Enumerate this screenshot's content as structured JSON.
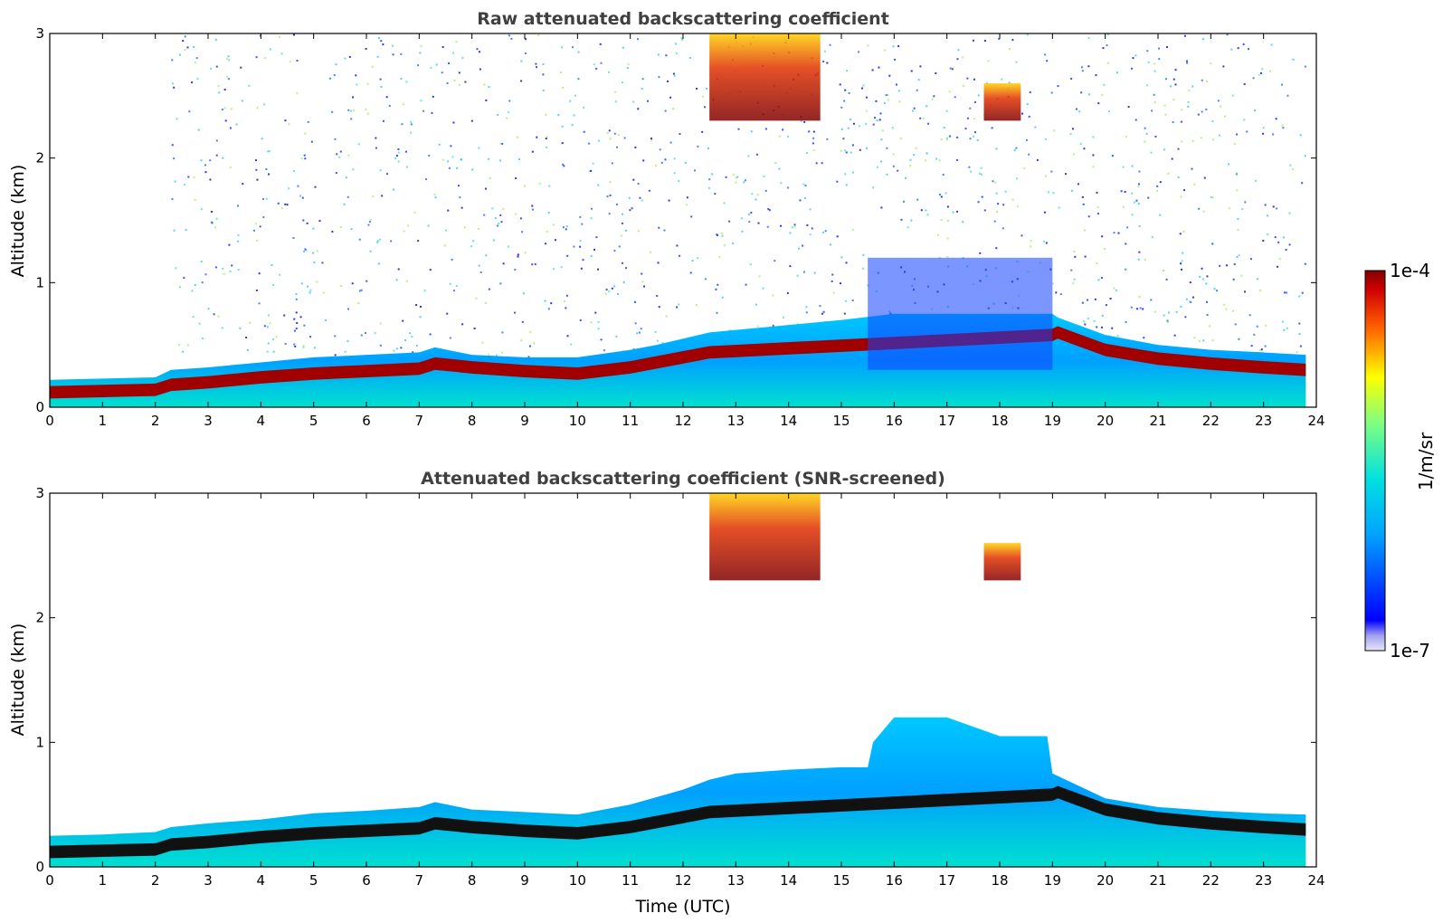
{
  "chart_data": [
    {
      "type": "heatmap",
      "title": "Raw attenuated backscattering coefficient",
      "xlabel": "",
      "ylabel": "Altitude (km)",
      "xlim": [
        0,
        24
      ],
      "ylim": [
        0,
        3
      ],
      "xticks": [
        0,
        1,
        2,
        3,
        4,
        5,
        6,
        7,
        8,
        9,
        10,
        11,
        12,
        13,
        14,
        15,
        16,
        17,
        18,
        19,
        20,
        21,
        22,
        23,
        24
      ],
      "yticks": [
        0,
        1,
        2,
        3
      ],
      "colorbar": {
        "label": "1/m/sr",
        "min_label": "1e-7",
        "max_label": "1e-4",
        "scale": "log",
        "colormap": "jet"
      },
      "layer_top_km": {
        "t": [
          0,
          1,
          2,
          2.3,
          3,
          4,
          5,
          6,
          7,
          7.3,
          8,
          9,
          10,
          11,
          11.5,
          12,
          12.5,
          13,
          14,
          15,
          16,
          17,
          18,
          19,
          19.1,
          20,
          21,
          22,
          23,
          23.8
        ],
        "z": [
          0.22,
          0.23,
          0.24,
          0.3,
          0.32,
          0.36,
          0.4,
          0.42,
          0.44,
          0.48,
          0.42,
          0.4,
          0.4,
          0.46,
          0.5,
          0.55,
          0.6,
          0.62,
          0.66,
          0.7,
          0.75,
          0.75,
          0.75,
          0.75,
          0.72,
          0.58,
          0.5,
          0.46,
          0.44,
          0.42
        ]
      },
      "aerosol_layer_km": {
        "t": [
          0,
          1,
          2,
          2.3,
          3,
          4,
          5,
          6,
          7,
          7.3,
          8,
          9,
          10,
          11,
          11.5,
          12,
          12.5,
          19,
          19.1,
          20,
          21,
          22,
          23,
          23.8
        ],
        "z": [
          0.12,
          0.13,
          0.14,
          0.18,
          0.2,
          0.24,
          0.27,
          0.29,
          0.31,
          0.35,
          0.32,
          0.29,
          0.27,
          0.32,
          0.36,
          0.4,
          0.44,
          0.58,
          0.6,
          0.46,
          0.39,
          0.35,
          0.32,
          0.3
        ]
      },
      "clouds": [
        {
          "t0": 12.5,
          "t1": 14.6,
          "z0": 2.3,
          "z1": 3.0,
          "level": 0.9
        },
        {
          "t0": 17.7,
          "t1": 18.4,
          "z0": 2.3,
          "z1": 2.6,
          "level": 0.9
        },
        {
          "t0": 15.5,
          "t1": 19.0,
          "z0": 0.3,
          "z1": 1.2,
          "level": 0.35
        }
      ]
    },
    {
      "type": "heatmap",
      "title": "Attenuated backscattering coefficient (SNR-screened)",
      "xlabel": "Time (UTC)",
      "ylabel": "Altitude (km)",
      "xlim": [
        0,
        24
      ],
      "ylim": [
        0,
        3
      ],
      "xticks": [
        0,
        1,
        2,
        3,
        4,
        5,
        6,
        7,
        8,
        9,
        10,
        11,
        12,
        13,
        14,
        15,
        16,
        17,
        18,
        19,
        20,
        21,
        22,
        23,
        24
      ],
      "yticks": [
        0,
        1,
        2,
        3
      ],
      "colorbar": {
        "label": "1/m/sr",
        "min_label": "1e-7",
        "max_label": "1e-4",
        "scale": "log",
        "colormap": "jet"
      },
      "screened_top_km": {
        "t": [
          0,
          1,
          2,
          2.3,
          3,
          4,
          5,
          6,
          7,
          7.3,
          8,
          9,
          10,
          11,
          12,
          12.5,
          13,
          14,
          15,
          15.5,
          15.6,
          16,
          17,
          18,
          18.9,
          19,
          20,
          21,
          22,
          23,
          23.8
        ],
        "z": [
          0.25,
          0.26,
          0.28,
          0.32,
          0.35,
          0.38,
          0.43,
          0.45,
          0.48,
          0.52,
          0.46,
          0.44,
          0.42,
          0.5,
          0.62,
          0.7,
          0.75,
          0.78,
          0.8,
          0.8,
          1.0,
          1.2,
          1.2,
          1.05,
          1.05,
          0.75,
          0.55,
          0.48,
          0.45,
          0.43,
          0.42
        ]
      },
      "clouds": [
        {
          "t0": 12.5,
          "t1": 14.6,
          "z0": 2.3,
          "z1": 3.0,
          "level": 0.9
        },
        {
          "t0": 17.7,
          "t1": 18.4,
          "z0": 2.3,
          "z1": 2.6,
          "level": 0.9
        }
      ]
    }
  ]
}
